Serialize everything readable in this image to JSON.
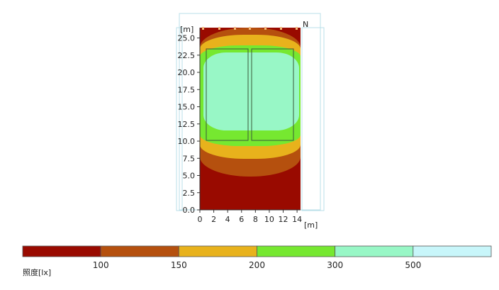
{
  "chart_data": {
    "type": "heatmap",
    "description_units": {
      "x": "m",
      "y": "m"
    },
    "xlabel": "[m]",
    "ylabel": "[m]",
    "north_label": "N",
    "xlim": [
      0,
      14.5
    ],
    "ylim": [
      0,
      26.5
    ],
    "x_ticks": [
      0,
      2,
      4,
      6,
      8,
      10,
      12,
      14
    ],
    "y_ticks": [
      "0.0",
      "2.5",
      "5.0",
      "7.5",
      "10.0",
      "12.5",
      "15.0",
      "17.5",
      "20.0",
      "22.5",
      "25.0"
    ],
    "legend_title": "照度[lx]",
    "legend_bins": [
      {
        "label": "",
        "color": "#990a00"
      },
      {
        "label": "100",
        "color": "#b5500e"
      },
      {
        "label": "150",
        "color": "#e8b21c"
      },
      {
        "label": "200",
        "color": "#76e830"
      },
      {
        "label": "300",
        "color": "#98f7c6"
      },
      {
        "label": "500",
        "color": "#c8f6fa"
      }
    ],
    "contours": [
      {
        "level": "100",
        "x_range": [
          0,
          14.5
        ],
        "y_range": [
          5.0,
          26.5
        ]
      },
      {
        "level": "150",
        "x_range": [
          0,
          14.5
        ],
        "y_range": [
          7.8,
          25.5
        ]
      },
      {
        "level": "200",
        "x_range": [
          0,
          14.5
        ],
        "y_range": [
          9.6,
          24.0
        ]
      },
      {
        "level": "300",
        "x_range": [
          0.5,
          14.3
        ],
        "y_range": [
          11.8,
          22.4
        ]
      }
    ],
    "luminaire_rectangles": [
      {
        "x_range": [
          0.9,
          7.0
        ],
        "y_range": [
          10.2,
          23.4
        ]
      },
      {
        "x_range": [
          7.5,
          13.8
        ],
        "y_range": [
          10.2,
          23.4
        ]
      }
    ],
    "grid": false,
    "legend_position": "bottom"
  }
}
